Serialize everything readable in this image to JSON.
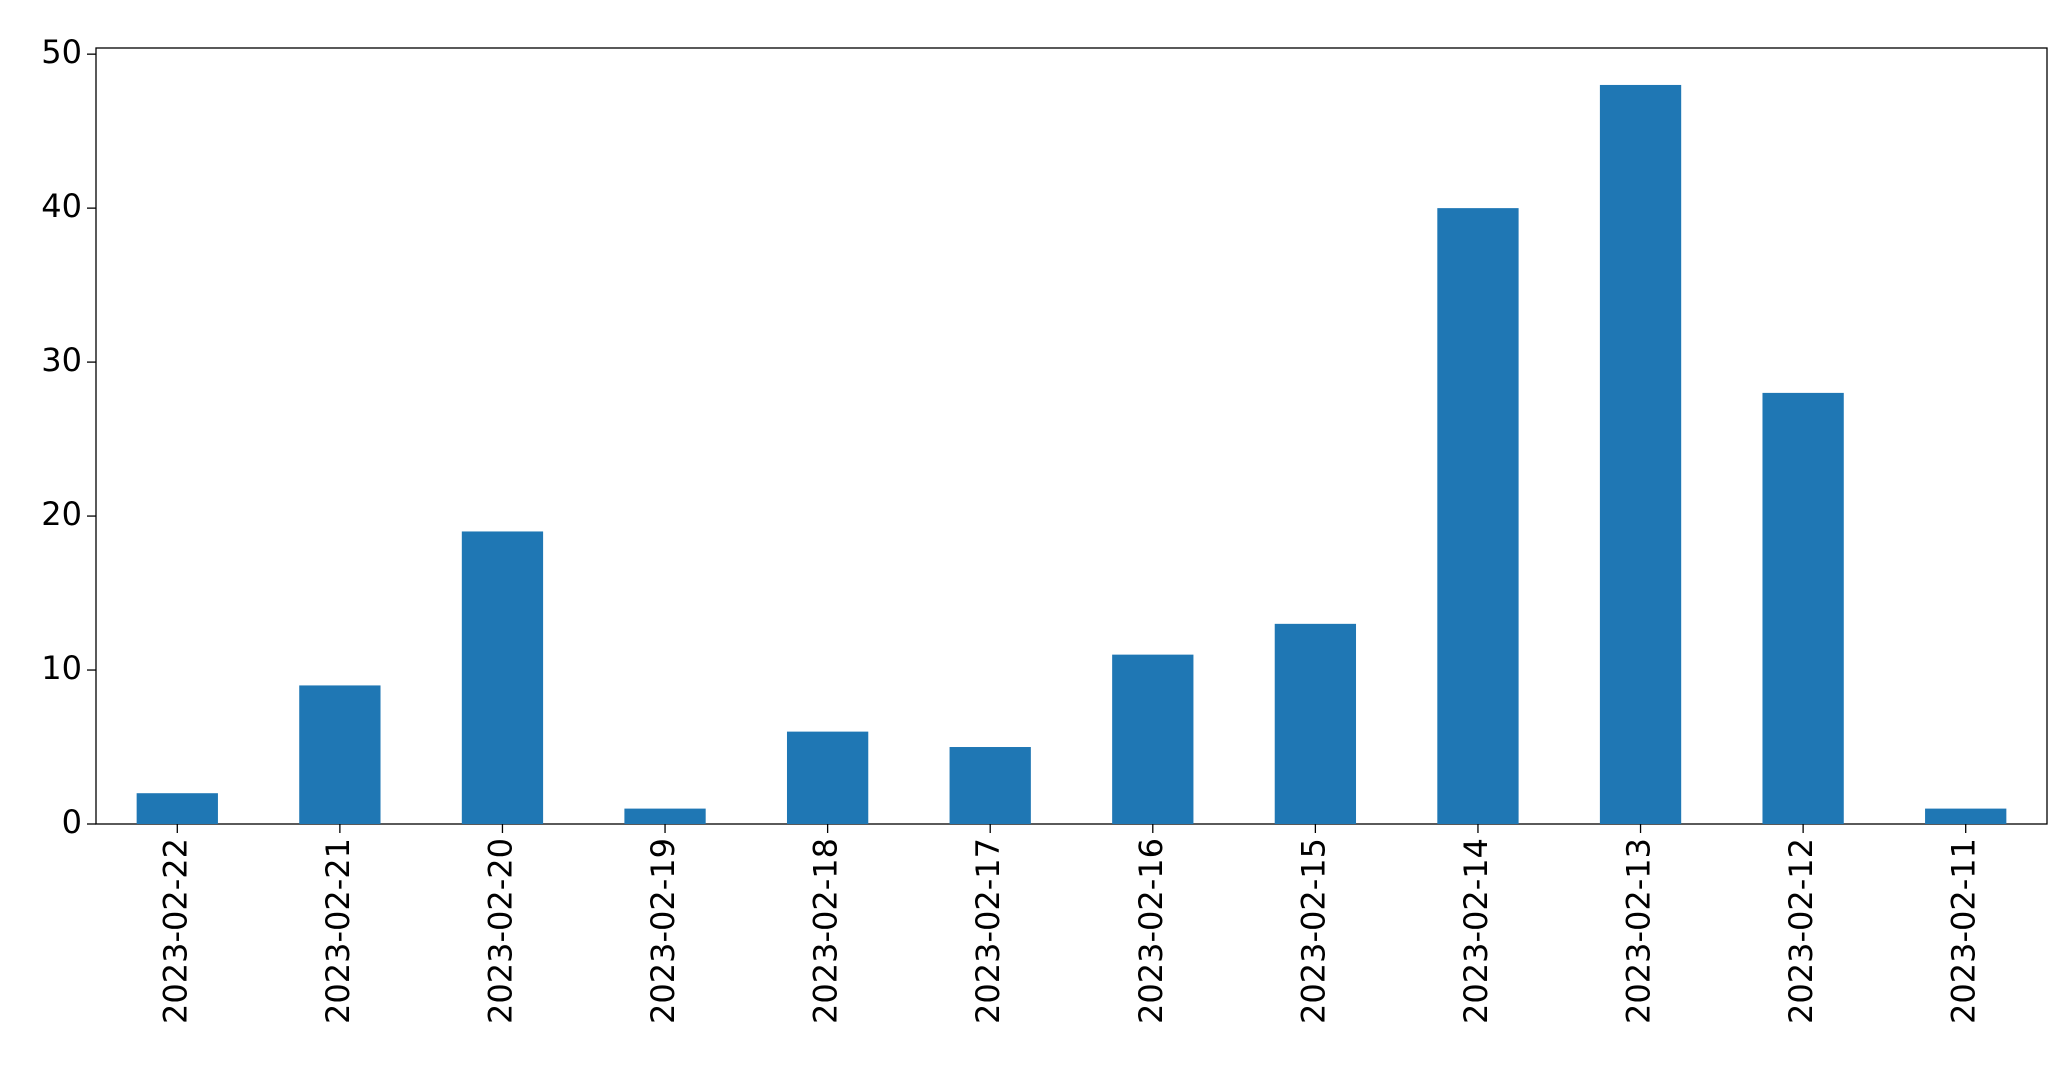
{
  "chart_data": {
    "type": "bar",
    "categories": [
      "2023-02-22",
      "2023-02-21",
      "2023-02-20",
      "2023-02-19",
      "2023-02-18",
      "2023-02-17",
      "2023-02-16",
      "2023-02-15",
      "2023-02-14",
      "2023-02-13",
      "2023-02-12",
      "2023-02-11"
    ],
    "values": [
      2,
      9,
      19,
      1,
      6,
      5,
      11,
      13,
      40,
      48,
      28,
      1
    ],
    "color": "#1f77b4",
    "ylim": [
      0,
      50.4
    ],
    "yticks": [
      0,
      10,
      20,
      30,
      40,
      50
    ],
    "grid": false
  }
}
